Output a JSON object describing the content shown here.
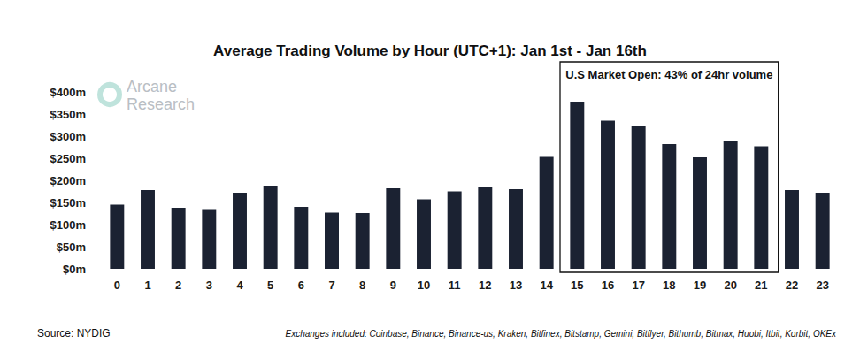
{
  "chart_data": {
    "type": "bar",
    "title": "Average Trading Volume by Hour (UTC+1): Jan 1st - Jan 16th",
    "categories": [
      "0",
      "1",
      "2",
      "3",
      "4",
      "5",
      "6",
      "7",
      "8",
      "9",
      "10",
      "11",
      "12",
      "13",
      "14",
      "15",
      "16",
      "17",
      "18",
      "19",
      "20",
      "21",
      "22",
      "23"
    ],
    "values": [
      145,
      178,
      138,
      135,
      172,
      188,
      140,
      127,
      126,
      182,
      157,
      175,
      185,
      180,
      253,
      378,
      335,
      322,
      282,
      252,
      288,
      277,
      178,
      172
    ],
    "color": "#1b2232",
    "ylim": [
      0,
      400
    ],
    "yticks": [
      {
        "value": 0,
        "label": "$0m"
      },
      {
        "value": 50,
        "label": "$50m"
      },
      {
        "value": 100,
        "label": "$100m"
      },
      {
        "value": 150,
        "label": "$150m"
      },
      {
        "value": 200,
        "label": "$200m"
      },
      {
        "value": 250,
        "label": "$250m"
      },
      {
        "value": 300,
        "label": "$300m"
      },
      {
        "value": 350,
        "label": "$350m"
      },
      {
        "value": 400,
        "label": "$400m"
      }
    ],
    "grid": false,
    "annotation": {
      "text": "U.S Market Open: 43% of 24hr volume",
      "from": "15",
      "to": "21"
    },
    "logo": [
      "Arcane",
      "Research"
    ],
    "source": "Source: NYDIG",
    "footnote": "Exchanges included: Coinbase, Binance, Binance-us, Kraken, Bitfinex, Bitstamp, Gemini, Bitflyer, Bithumb, Bitmax, Huobi, Itbit, Korbit, OKEx"
  }
}
